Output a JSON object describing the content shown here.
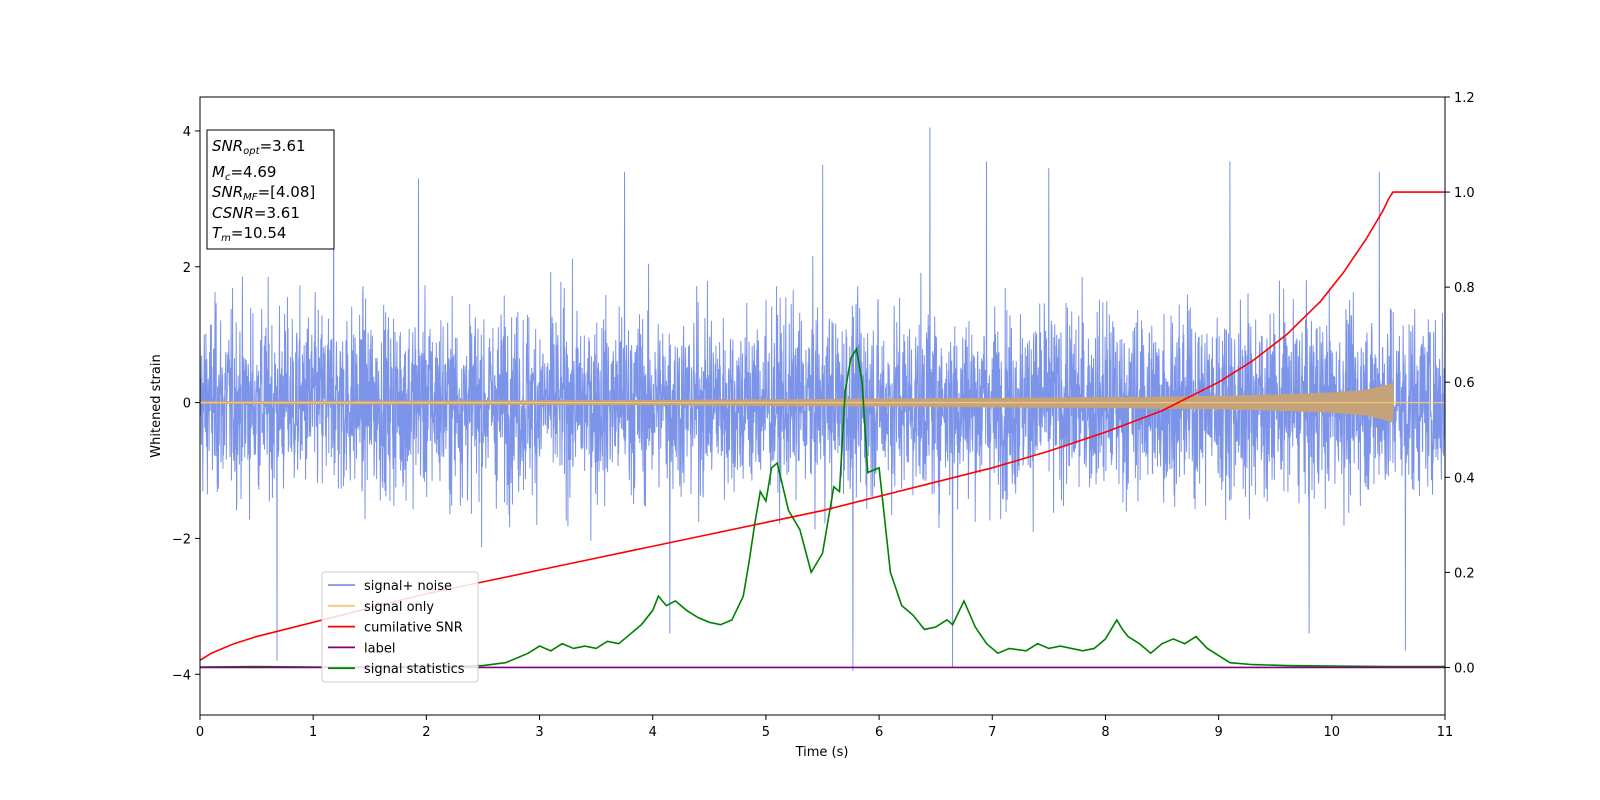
{
  "chart_data": {
    "type": "line",
    "xlabel": "Time (s)",
    "ylabel": "Whitened strain",
    "xlim": [
      0,
      11
    ],
    "ylim_left": [
      -4.6,
      4.5
    ],
    "ylim_right": [
      -0.1,
      1.2
    ],
    "x_ticks": [
      0,
      1,
      2,
      3,
      4,
      5,
      6,
      7,
      8,
      9,
      10,
      11
    ],
    "y_ticks_left": [
      -4,
      -2,
      0,
      2,
      4
    ],
    "y_ticks_right": [
      0.0,
      0.2,
      0.4,
      0.6,
      0.8,
      1.0,
      1.2
    ],
    "grid": false,
    "legend_placement": "lower-left",
    "annotation": {
      "lines": [
        {
          "sym": "SNR",
          "sub": "opt",
          "val": "=3.61"
        },
        {
          "sym": "M",
          "sub": "c",
          "val": "=4.69"
        },
        {
          "sym": "SNR",
          "sub": "MF",
          "val": "=[4.08]"
        },
        {
          "sym": "CSNR",
          "sub": "",
          "val": "=3.61"
        },
        {
          "sym": "T",
          "sub": "m",
          "val": "=10.54"
        }
      ]
    },
    "series": [
      {
        "name": "signal+ noise",
        "axis": "left",
        "color": "#7b93e8",
        "description_range": [
          -3.95,
          4.05
        ],
        "peaks": [
          {
            "x": 1.18,
            "y": 3.65
          },
          {
            "x": 1.93,
            "y": 3.3
          },
          {
            "x": 3.75,
            "y": 3.4
          },
          {
            "x": 5.5,
            "y": 3.5
          },
          {
            "x": 6.45,
            "y": 4.05
          },
          {
            "x": 6.95,
            "y": 3.55
          },
          {
            "x": 7.5,
            "y": 3.45
          },
          {
            "x": 9.1,
            "y": 3.55
          },
          {
            "x": 10.42,
            "y": 3.4
          },
          {
            "x": 0.68,
            "y": -3.8
          },
          {
            "x": 5.77,
            "y": -3.95
          },
          {
            "x": 6.65,
            "y": -3.9
          },
          {
            "x": 10.65,
            "y": -3.65
          },
          {
            "x": 9.8,
            "y": -3.4
          },
          {
            "x": 4.15,
            "y": -3.4
          }
        ]
      },
      {
        "name": "signal only",
        "axis": "left",
        "color": "#f5c77e",
        "x": [
          0,
          2,
          4,
          5,
          6,
          7,
          8,
          9,
          9.5,
          10,
          10.3,
          10.5,
          10.54,
          10.55,
          11
        ],
        "amplitude": [
          0.02,
          0.03,
          0.04,
          0.05,
          0.06,
          0.07,
          0.08,
          0.1,
          0.12,
          0.15,
          0.19,
          0.27,
          0.3,
          0,
          0
        ]
      },
      {
        "name": "cumilative SNR",
        "axis": "right",
        "color": "#ff0000",
        "x": [
          0,
          0.1,
          0.3,
          0.5,
          1,
          1.5,
          2,
          2.5,
          3,
          3.5,
          4,
          4.5,
          5,
          5.5,
          6,
          6.5,
          7,
          7.5,
          8,
          8.5,
          9,
          9.3,
          9.6,
          9.9,
          10.1,
          10.3,
          10.4,
          10.45,
          10.5,
          10.54,
          10.6,
          11
        ],
        "values": [
          0.015,
          0.03,
          0.05,
          0.065,
          0.095,
          0.125,
          0.155,
          0.18,
          0.205,
          0.23,
          0.255,
          0.28,
          0.305,
          0.33,
          0.36,
          0.39,
          0.42,
          0.455,
          0.495,
          0.54,
          0.6,
          0.645,
          0.7,
          0.77,
          0.83,
          0.9,
          0.94,
          0.96,
          0.985,
          1.0,
          1.0,
          1.0
        ]
      },
      {
        "name": "label",
        "axis": "right",
        "color": "#800080",
        "x": [
          0,
          11
        ],
        "values": [
          0,
          0
        ]
      },
      {
        "name": "signal statistics",
        "axis": "right",
        "color": "#008000",
        "x": [
          0,
          0.5,
          1,
          1.5,
          2,
          2.5,
          2.7,
          2.9,
          3.0,
          3.1,
          3.2,
          3.3,
          3.4,
          3.5,
          3.6,
          3.7,
          3.8,
          3.9,
          4.0,
          4.05,
          4.12,
          4.2,
          4.3,
          4.4,
          4.5,
          4.6,
          4.7,
          4.8,
          4.85,
          4.9,
          4.95,
          5.0,
          5.05,
          5.1,
          5.2,
          5.3,
          5.4,
          5.45,
          5.5,
          5.6,
          5.65,
          5.7,
          5.75,
          5.8,
          5.85,
          5.9,
          6.0,
          6.1,
          6.2,
          6.3,
          6.4,
          6.5,
          6.6,
          6.65,
          6.75,
          6.85,
          6.95,
          7.05,
          7.15,
          7.3,
          7.4,
          7.5,
          7.6,
          7.7,
          7.8,
          7.9,
          8.0,
          8.05,
          8.1,
          8.15,
          8.2,
          8.3,
          8.4,
          8.5,
          8.6,
          8.7,
          8.8,
          8.9,
          9.0,
          9.1,
          9.3,
          9.6,
          10,
          10.5,
          11
        ],
        "values": [
          0.001,
          0.002,
          0.001,
          0.001,
          0.002,
          0.004,
          0.01,
          0.03,
          0.045,
          0.035,
          0.05,
          0.04,
          0.045,
          0.04,
          0.055,
          0.05,
          0.07,
          0.09,
          0.12,
          0.15,
          0.13,
          0.14,
          0.12,
          0.105,
          0.095,
          0.09,
          0.1,
          0.15,
          0.22,
          0.3,
          0.37,
          0.35,
          0.42,
          0.43,
          0.33,
          0.29,
          0.2,
          0.22,
          0.24,
          0.38,
          0.37,
          0.58,
          0.65,
          0.67,
          0.6,
          0.41,
          0.42,
          0.2,
          0.13,
          0.11,
          0.08,
          0.085,
          0.1,
          0.09,
          0.14,
          0.085,
          0.05,
          0.03,
          0.04,
          0.035,
          0.05,
          0.04,
          0.045,
          0.04,
          0.035,
          0.04,
          0.06,
          0.08,
          0.1,
          0.08,
          0.065,
          0.05,
          0.03,
          0.05,
          0.06,
          0.05,
          0.065,
          0.04,
          0.025,
          0.01,
          0.006,
          0.004,
          0.003,
          0.002,
          0.002
        ]
      }
    ]
  }
}
